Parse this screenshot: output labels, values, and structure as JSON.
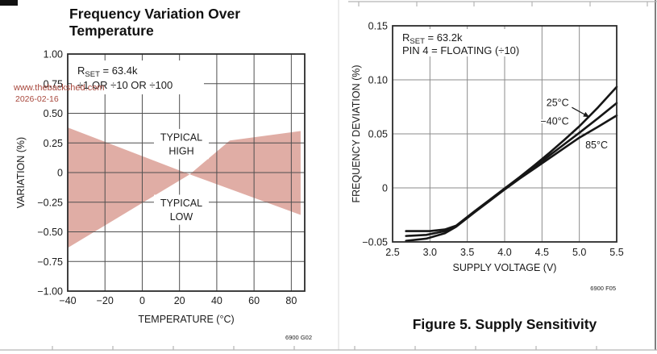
{
  "page": {
    "watermark": {
      "line1": "www.thebackshed.com",
      "line2": "2026-02-16",
      "color": "#a8483d"
    }
  },
  "chart_data": [
    {
      "type": "area",
      "name": "frequency-variation-over-temperature",
      "title": "Frequency Variation Over Temperature",
      "xlabel": "TEMPERATURE (°C)",
      "ylabel": "VARIATION (%)",
      "xlim": [
        -40,
        87.2
      ],
      "ylim": [
        -1.0,
        1.0
      ],
      "xticks": [
        -40,
        -20,
        0,
        20,
        40,
        60,
        80
      ],
      "xtick_labels": [
        "−40",
        "−20",
        "0",
        "20",
        "40",
        "60",
        "80"
      ],
      "yticks": [
        1.0,
        0.75,
        0.5,
        0.25,
        0,
        -0.25,
        -0.5,
        -0.75,
        -1.0
      ],
      "ytick_labels": [
        "1.00",
        "0.75",
        "0.50",
        "0.25",
        "0",
        "−0.25",
        "−0.50",
        "−0.75",
        "−1.00"
      ],
      "grid": true,
      "legend": "none",
      "annotation": {
        "line1_pre": "R",
        "line1_sub": "SET",
        "line1_post": " = 63.4k",
        "line2": "÷1 OR ÷10 OR ÷100"
      },
      "region_color": "#e0ada5",
      "regions": [
        [
          [
            -40,
            0.38
          ],
          [
            25.5,
            -0.015
          ],
          [
            -40,
            -0.635
          ]
        ],
        [
          [
            25.5,
            -0.015
          ],
          [
            47,
            0.27
          ],
          [
            85,
            0.35
          ],
          [
            85,
            -0.357
          ]
        ]
      ],
      "inline_labels": [
        {
          "lines": [
            "TYPICAL",
            "HIGH"
          ],
          "x": 21,
          "y": [
            0.3,
            0.182
          ]
        },
        {
          "lines": [
            "TYPICAL",
            "LOW"
          ],
          "x": 21,
          "y": [
            -0.255,
            -0.372
          ]
        }
      ],
      "code": "6900 G02"
    },
    {
      "type": "line",
      "name": "supply-sensitivity",
      "title": "Figure 5. Supply Sensitivity",
      "xlabel": "SUPPLY VOLTAGE (V)",
      "ylabel": "FREQUENCY DEVIATION (%)",
      "xlim": [
        2.5,
        5.5
      ],
      "ylim": [
        -0.05,
        0.15
      ],
      "xticks": [
        2.5,
        3.0,
        3.5,
        4.0,
        4.5,
        5.0,
        5.5
      ],
      "xtick_labels": [
        "2.5",
        "3.0",
        "3.5",
        "4.0",
        "4.5",
        "5.0",
        "5.5"
      ],
      "yticks": [
        0.15,
        0.1,
        0.05,
        0,
        -0.05
      ],
      "ytick_labels": [
        "0.15",
        "0.10",
        "0.05",
        "0",
        "−0.05"
      ],
      "grid": true,
      "legend": "inline-labels",
      "annotation": {
        "line1_pre": "R",
        "line1_sub": "SET",
        "line1_post": " = 63.2k",
        "line2": "PIN 4 = FLOATING (÷10)"
      },
      "line_color": "#161616",
      "series": [
        {
          "name": "−40°C",
          "x": [
            2.68,
            3.0,
            3.2,
            3.35,
            3.6,
            3.8,
            4.0,
            4.2,
            4.4,
            4.6,
            4.8,
            5.0,
            5.25,
            5.5
          ],
          "y": [
            -0.04,
            -0.04,
            -0.0385,
            -0.035,
            -0.0215,
            -0.011,
            -0.0005,
            0.01,
            0.021,
            0.0325,
            0.0445,
            0.057,
            0.0745,
            0.0935
          ]
        },
        {
          "name": "25°C",
          "x": [
            2.68,
            2.95,
            3.2,
            3.35,
            3.6,
            3.8,
            4.0,
            4.2,
            4.4,
            4.6,
            4.8,
            5.0,
            5.25,
            5.5
          ],
          "y": [
            -0.0445,
            -0.0435,
            -0.04,
            -0.0355,
            -0.022,
            -0.0115,
            -0.001,
            0.009,
            0.0195,
            0.03,
            0.0405,
            0.051,
            0.0645,
            0.0785
          ]
        },
        {
          "name": "85°C",
          "x": [
            2.68,
            2.95,
            3.2,
            3.35,
            3.6,
            3.8,
            4.0,
            4.2,
            4.4,
            4.6,
            4.8,
            5.0,
            5.25,
            5.5
          ],
          "y": [
            -0.049,
            -0.047,
            -0.042,
            -0.036,
            -0.0225,
            -0.012,
            -0.0015,
            0.0085,
            0.018,
            0.0275,
            0.037,
            0.0465,
            0.0565,
            0.067
          ]
        }
      ],
      "series_labels": [
        {
          "text": "25°C",
          "x": 4.86,
          "y": 0.079,
          "anchor": "end"
        },
        {
          "text": "−40°C",
          "x": 4.86,
          "y": 0.062,
          "anchor": "end"
        },
        {
          "text": "85°C",
          "x": 5.08,
          "y": 0.04,
          "anchor": "start"
        }
      ],
      "arrow": {
        "x1": 4.9,
        "y1": 0.0745,
        "x2": 5.135,
        "y2": 0.0655
      },
      "code": "6900 F05"
    }
  ]
}
